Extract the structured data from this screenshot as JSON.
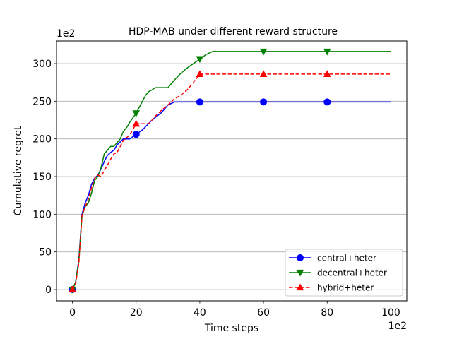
{
  "chart_data": {
    "type": "line",
    "title": "HDP-MAB under different reward structure",
    "xlabel": "Time steps",
    "ylabel": "Cumulative regret",
    "x_multiplier": "1e2",
    "y_multiplier": "1e2",
    "xlim": [
      -5,
      105
    ],
    "ylim": [
      -15,
      330
    ],
    "xticks": [
      0,
      20,
      40,
      60,
      80,
      100
    ],
    "yticks": [
      0,
      50,
      100,
      150,
      200,
      250,
      300
    ],
    "grid": "y-major",
    "legend_position": "lower right",
    "series": [
      {
        "name": "central+heter",
        "color": "#0000ff",
        "linestyle": "solid",
        "marker": "circle",
        "x": [
          0,
          1,
          2,
          3,
          4,
          5,
          6,
          7,
          8,
          9,
          10,
          11,
          12,
          13,
          14,
          16,
          18,
          20,
          22,
          25,
          28,
          30,
          32,
          35,
          38,
          40,
          50,
          60,
          70,
          80,
          90,
          100
        ],
        "y": [
          0,
          10,
          40,
          100,
          115,
          125,
          140,
          148,
          152,
          160,
          170,
          178,
          182,
          185,
          192,
          200,
          200,
          206,
          212,
          225,
          235,
          245,
          249,
          249,
          249,
          249,
          249,
          249,
          249,
          249,
          249,
          249
        ],
        "markers_at": [
          0,
          20,
          40,
          60,
          80
        ]
      },
      {
        "name": "decentral+heter",
        "color": "#008000",
        "linestyle": "solid",
        "marker": "triangle-down",
        "x": [
          0,
          1,
          2,
          3,
          4,
          5,
          6,
          7,
          8,
          9,
          10,
          11,
          12,
          13,
          14,
          15,
          16,
          17,
          18,
          19,
          20,
          21,
          22,
          23,
          24,
          25,
          26,
          28,
          30,
          32,
          34,
          36,
          38,
          40,
          42,
          44,
          45,
          50,
          60,
          70,
          80,
          90,
          100
        ],
        "y": [
          0,
          10,
          38,
          98,
          110,
          115,
          128,
          145,
          150,
          162,
          180,
          185,
          190,
          190,
          195,
          200,
          210,
          215,
          222,
          228,
          234,
          242,
          250,
          258,
          263,
          265,
          268,
          268,
          268,
          278,
          287,
          294,
          300,
          306,
          312,
          316,
          316,
          316,
          316,
          316,
          316,
          316,
          316
        ],
        "markers_at": [
          0,
          20,
          40,
          60,
          80
        ]
      },
      {
        "name": "hybrid+heter",
        "color": "#ff0000",
        "linestyle": "dashed",
        "marker": "triangle-up",
        "x": [
          0,
          1,
          2,
          3,
          4,
          5,
          6,
          7,
          8,
          9,
          10,
          11,
          12,
          13,
          14,
          16,
          18,
          20,
          22,
          24,
          26,
          28,
          30,
          32,
          34,
          36,
          38,
          40,
          50,
          60,
          70,
          80,
          90,
          100
        ],
        "y": [
          0,
          8,
          35,
          98,
          110,
          120,
          135,
          148,
          152,
          150,
          158,
          165,
          173,
          180,
          182,
          198,
          205,
          220,
          220,
          220,
          230,
          238,
          245,
          253,
          258,
          265,
          275,
          286,
          286,
          286,
          286,
          286,
          286,
          286
        ],
        "markers_at": [
          0,
          20,
          40,
          60,
          80
        ]
      }
    ]
  }
}
